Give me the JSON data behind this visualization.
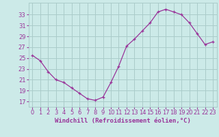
{
  "x": [
    0,
    1,
    2,
    3,
    4,
    5,
    6,
    7,
    8,
    9,
    10,
    11,
    12,
    13,
    14,
    15,
    16,
    17,
    18,
    19,
    20,
    21,
    22,
    23
  ],
  "y": [
    25.5,
    24.5,
    22.5,
    21.0,
    20.5,
    19.5,
    18.5,
    17.5,
    17.2,
    17.8,
    20.5,
    23.5,
    27.2,
    28.5,
    30.0,
    31.5,
    33.5,
    34.0,
    33.5,
    33.0,
    31.5,
    29.5,
    27.5,
    28.0
  ],
  "line_color": "#993399",
  "marker": "+",
  "background_color": "#cceae8",
  "grid_color": "#aaccca",
  "ylabel_ticks": [
    17,
    19,
    21,
    23,
    25,
    27,
    29,
    31,
    33
  ],
  "xlabel": "Windchill (Refroidissement éolien,°C)",
  "ylim": [
    16.0,
    35.2
  ],
  "xlim": [
    -0.5,
    23.5
  ],
  "font_color": "#993399",
  "label_fontsize": 6.5,
  "tick_fontsize": 6.0
}
